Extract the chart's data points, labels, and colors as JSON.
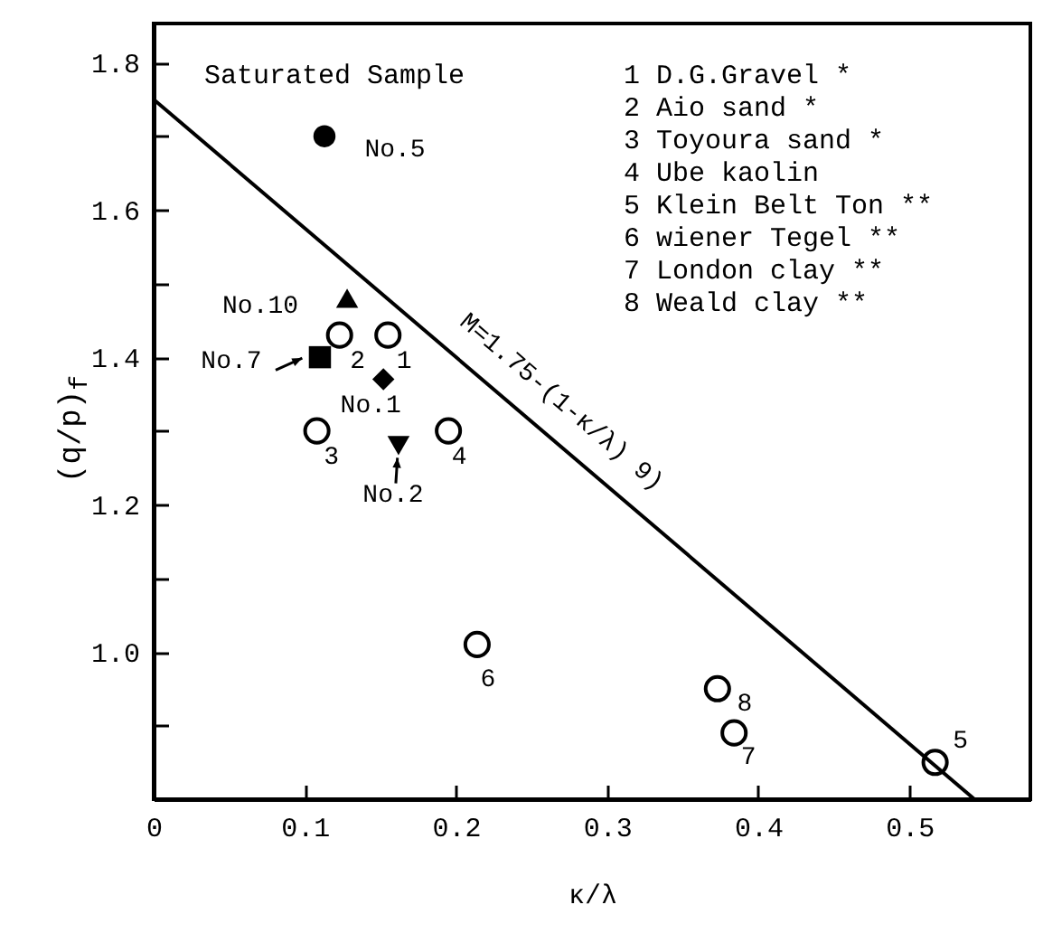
{
  "chart_data": {
    "type": "scatter",
    "xlabel": "κ/λ",
    "ylabel": "(q/p)$_{f}$",
    "xlim": [
      0,
      0.58
    ],
    "ylim": [
      0.8,
      1.853
    ],
    "xticks": [
      0,
      0.1,
      0.2,
      0.3,
      0.4,
      0.5
    ],
    "yticks": [
      {
        "value": 0.9,
        "label": null
      },
      {
        "value": 1.0,
        "label": "1.0"
      },
      {
        "value": 1.1,
        "label": null
      },
      1.2,
      {
        "value": 1.3,
        "label": null
      },
      1.4,
      {
        "value": 1.5,
        "label": null
      },
      1.6,
      {
        "value": 1.7,
        "label": null
      },
      1.8
    ],
    "series": [
      {
        "marker": "circle",
        "color": "#000000",
        "x": [
          0.155,
          0.123,
          0.108,
          0.195,
          0.214,
          0.373,
          0.384,
          0.517
        ],
        "values": [
          1.43,
          1.43,
          1.3,
          1.3,
          1.01,
          0.95,
          0.89,
          0.85
        ]
      },
      {
        "marker": "circle",
        "color": "#000000",
        "x": [
          0.113
        ],
        "values": [
          1.7
        ]
      },
      {
        "marker": "triangle",
        "color": "#000000",
        "x": [
          0.128
        ],
        "values": [
          1.48
        ]
      },
      {
        "marker": "square",
        "color": "#000000",
        "x": [
          0.11
        ],
        "values": [
          1.4
        ]
      },
      {
        "marker": "diamond",
        "color": "#000000",
        "x": [
          0.152
        ],
        "values": [
          1.37
        ]
      },
      {
        "marker": "triangle-down",
        "color": "#000000",
        "x": [
          0.162
        ],
        "values": [
          1.28
        ]
      },
      {
        "type": "line",
        "name": "M=1.75-(1-κ/λ) 9)",
        "color": "#000000",
        "x": [
          0,
          0.543
        ],
        "values": [
          1.75,
          0.8
        ]
      }
    ],
    "annotations": [
      "Saturated Sample",
      "1 D.G.Gravel *",
      "2 Aio sand *",
      "3 Toyoura sand *",
      "4 Ube kaolin",
      "5 Klein Belt Ton **",
      "6 wiener Tegel **",
      "7 London clay **",
      "8 Weald clay **",
      {
        "text": "1",
        "x": 0.155,
        "y": 1.43
      },
      {
        "text": "2",
        "x": 0.123,
        "y": 1.43
      },
      {
        "text": "3",
        "x": 0.108,
        "y": 1.3
      },
      {
        "text": "4",
        "x": 0.195,
        "y": 1.3
      },
      {
        "text": "6",
        "x": 0.214,
        "y": 1.01
      },
      {
        "text": "8",
        "x": 0.373,
        "y": 0.95
      },
      {
        "text": "7",
        "x": 0.384,
        "y": 0.89
      },
      {
        "text": "5",
        "x": 0.517,
        "y": 0.85
      },
      {
        "text": "No.5",
        "x": 0.113,
        "y": 1.7
      },
      {
        "text": "No.10",
        "x": 0.128,
        "y": 1.48
      },
      {
        "text": "No.7",
        "x": 0.11,
        "y": 1.4
      },
      {
        "text": "No.1",
        "x": 0.152,
        "y": 1.37
      },
      {
        "text": "No.2",
        "x": 0.162,
        "y": 1.28
      }
    ]
  }
}
